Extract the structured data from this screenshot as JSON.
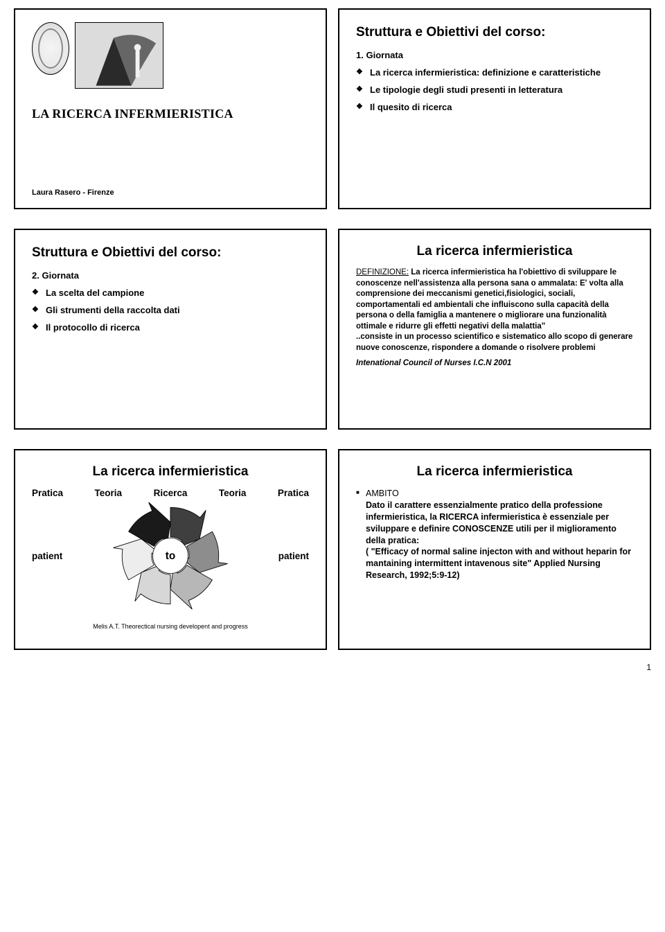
{
  "slide1": {
    "title": "LA RICERCA INFERMIERISTICA",
    "footer": "Laura Rasero - Firenze",
    "seal": {
      "border_color": "#888888"
    },
    "photo": {
      "bg": "#d9d9d9",
      "cone_fill": "#2a2a2a",
      "drape_fill": "#666666",
      "figure_fill": "#f2f2f2"
    }
  },
  "slide2": {
    "title": "Struttura e Obiettivi del corso:",
    "num": "1.",
    "num_label": "Giornata",
    "items": [
      "La ricerca infermieristica: definizione e caratteristiche",
      "Le tipologie degli studi presenti in letteratura",
      "Il quesito di ricerca"
    ]
  },
  "slide3": {
    "title": "Struttura e Obiettivi del corso:",
    "num": "2.",
    "num_label": "Giornata",
    "items": [
      "La scelta del campione",
      "Gli strumenti della raccolta dati",
      "Il protocollo di ricerca"
    ]
  },
  "slide4": {
    "title": "La ricerca infermieristica",
    "def_label": "DEFINIZIONE:",
    "body_part1": "La ricerca infermieristica ha l'obiettivo di sviluppare le conoscenze nell'assistenza alla persona sana o ammalata: E' volta alla comprensione dei meccanismi genetici,fisiologici, sociali, comportamentali ed ambientali che influiscono sulla capacità della persona o della famiglia a mantenere o migliorare una funzionalità ottimale e ridurre gli effetti negativi della malattia\"",
    "body_part2": "..consiste in un processo scientifico e sistematico allo scopo di generare nuove conoscenze, rispondere a domande o risolvere problemi",
    "cite": "Intenational Council of Nurses I.C.N 2001"
  },
  "slide5": {
    "title": "La ricerca infermieristica",
    "labels": [
      "Pratica",
      "Teoria",
      "Ricerca",
      "Teoria",
      "Pratica"
    ],
    "sub_left": "patient",
    "sub_center": "to",
    "sub_right": "patient",
    "footer": "Melis A.T. Theorectical nursing developent and progress",
    "arrows": {
      "colors": [
        "#3f3f3f",
        "#8d8d8d",
        "#b7b7b7",
        "#d7d7d7",
        "#ededed",
        "#1a1a1a"
      ],
      "stroke": "#000000",
      "center_fill": "#ffffff"
    }
  },
  "slide6": {
    "title": "La ricerca infermieristica",
    "heading": "AMBITO",
    "body_lines": [
      "Dato il carattere essenzialmente pratico della professione infermieristica, la RICERCA infermieristica è essenziale per sviluppare e definire CONOSCENZE utili per il miglioramento della pratica:",
      "( \"Efficacy of normal saline injecton with and without heparin for mantaining intermittent intavenous site\" Applied Nursing Research, 1992;5:9-12)"
    ]
  },
  "page_number": "1"
}
